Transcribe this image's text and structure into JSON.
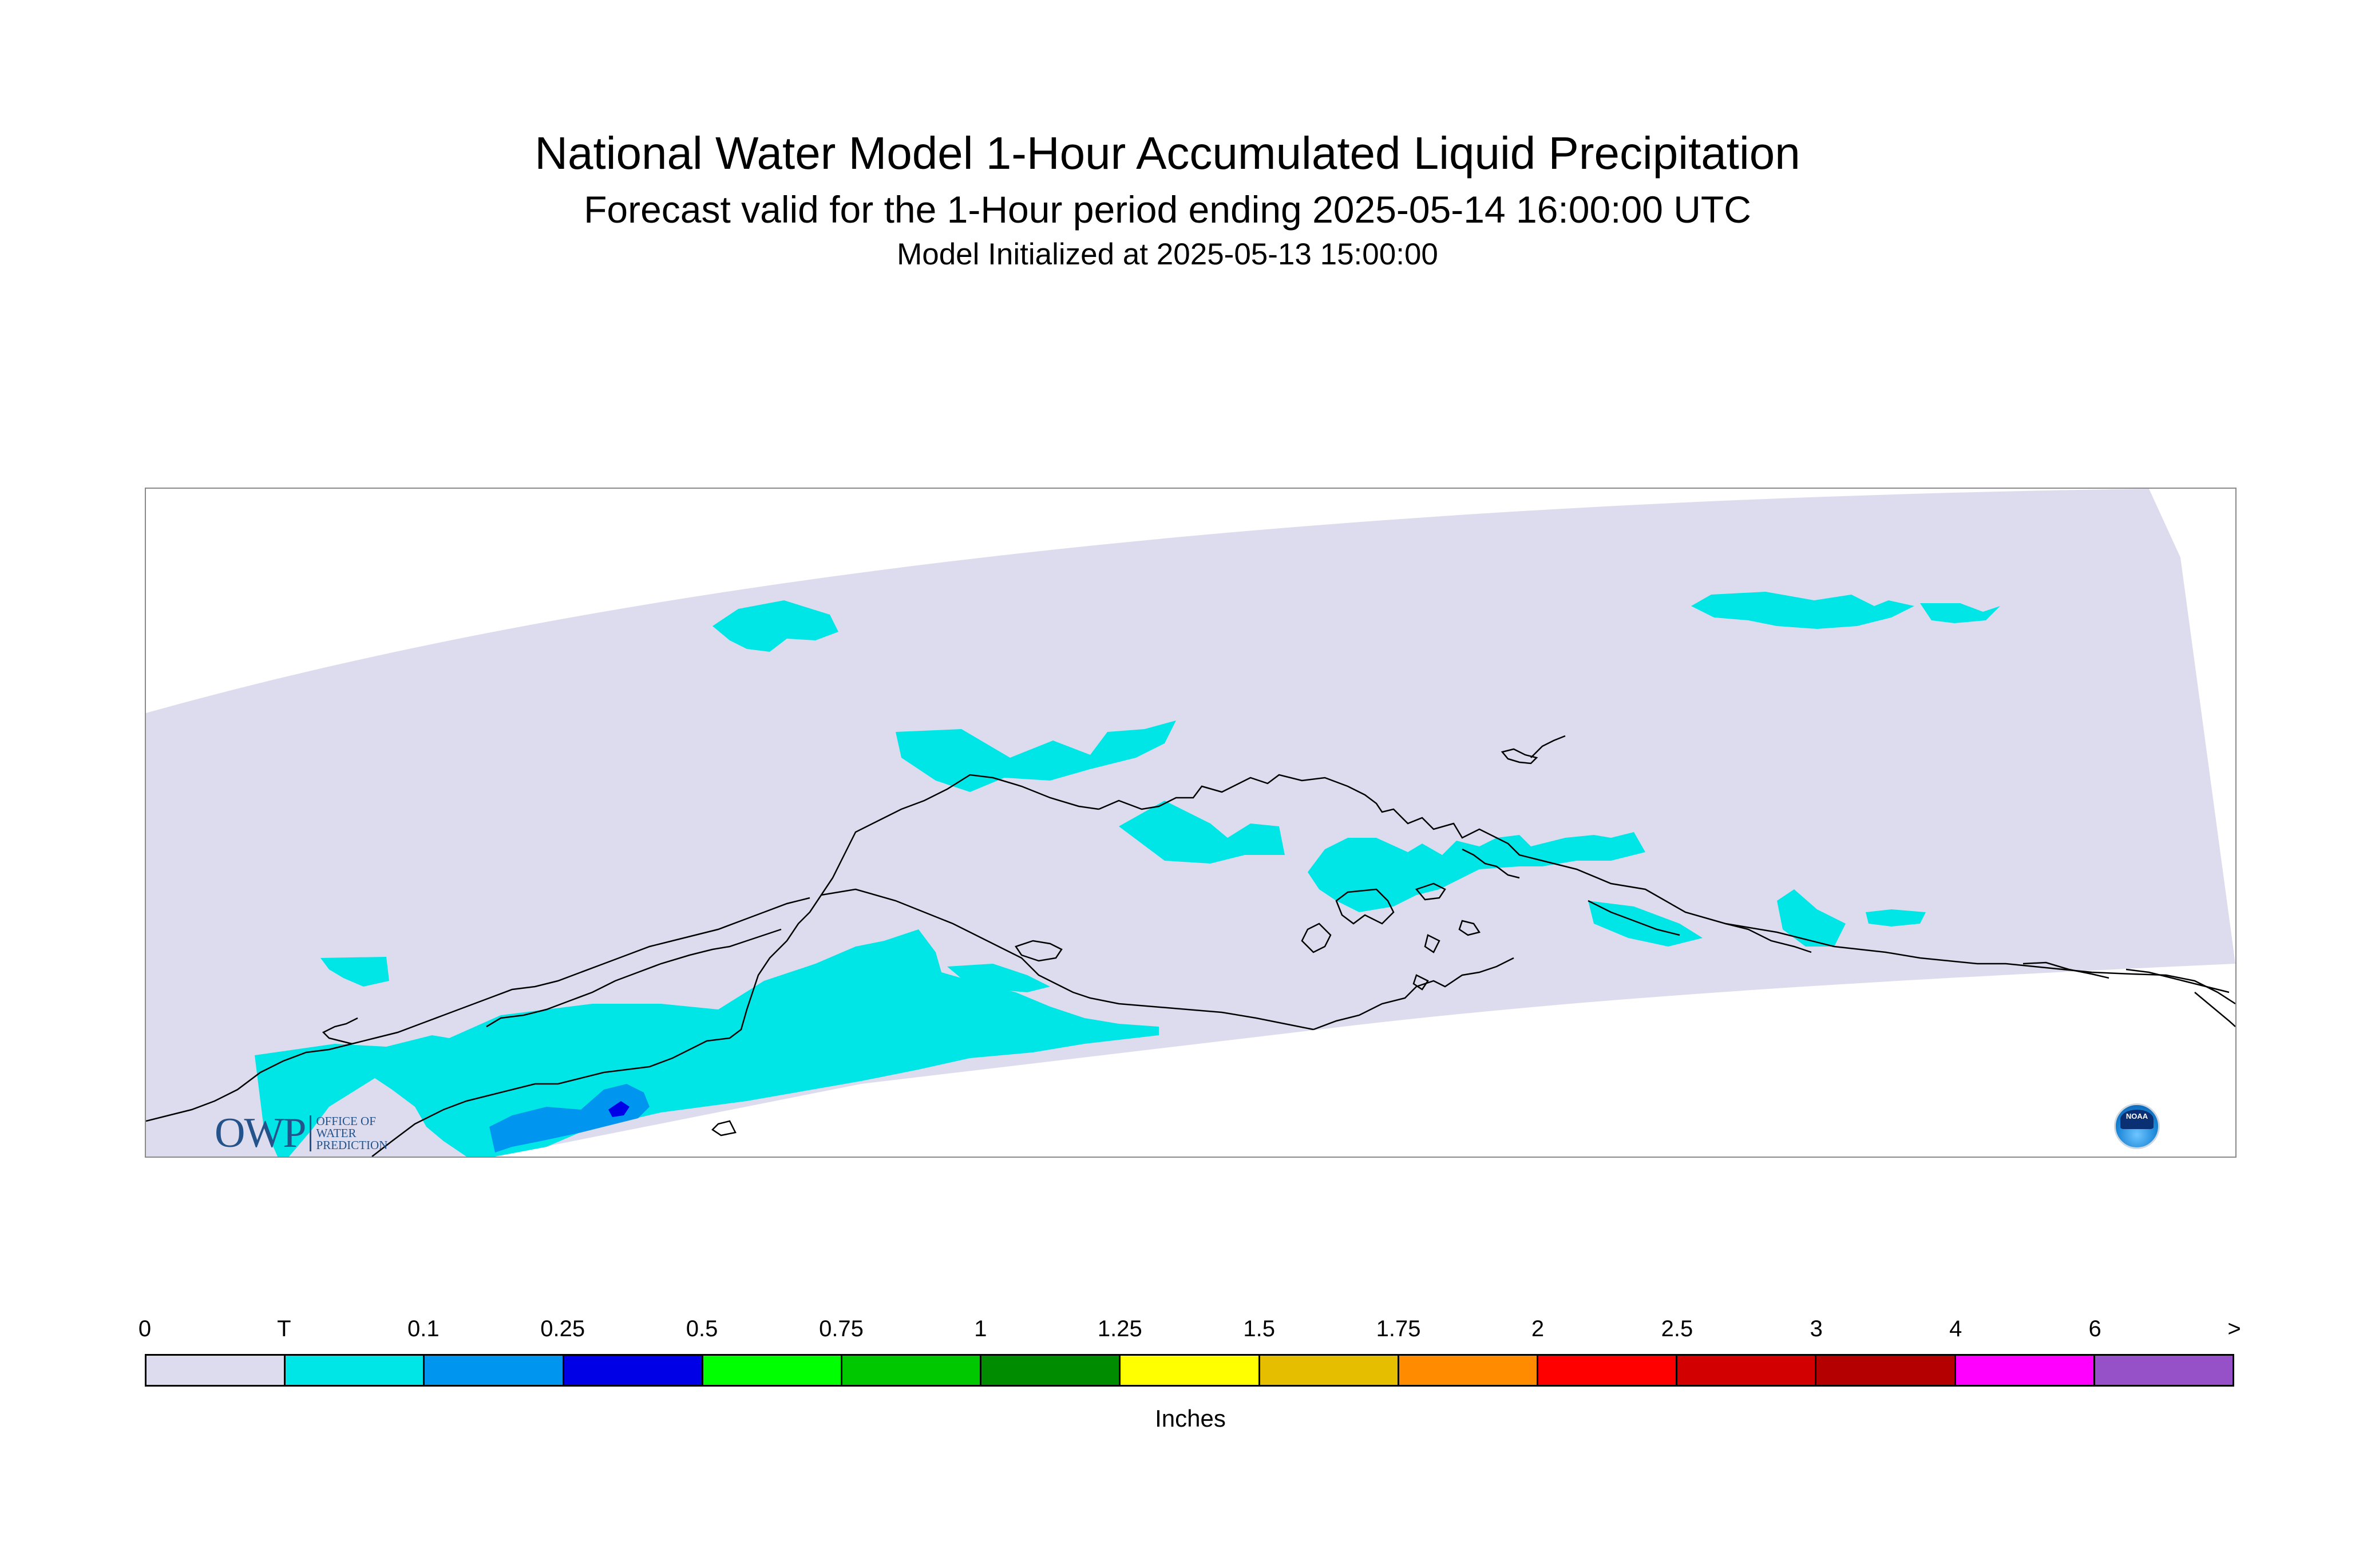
{
  "title": {
    "main": "National Water Model 1-Hour Accumulated Liquid Precipitation",
    "sub": "Forecast valid for the 1-Hour period ending 2025-05-14 16:00:00 UTC",
    "init": "Model Initialized at 2025-05-13 15:00:00"
  },
  "map": {
    "region_colors": {
      "domain": "#dcdcee",
      "trace": "#00e6e6",
      "light": "#0096f0",
      "heavy": "#0000e6",
      "coast": "#000000"
    }
  },
  "logos": {
    "owp_big": "OWP",
    "owp_lines": [
      "OFFICE OF",
      "WATER",
      "PREDICTION"
    ],
    "noaa": "NOAA"
  },
  "legend": {
    "labels": [
      "0",
      "T",
      "0.1",
      "0.25",
      "0.5",
      "0.75",
      "1",
      "1.25",
      "1.5",
      "1.75",
      "2",
      "2.5",
      "3",
      "4",
      "6",
      ">"
    ],
    "colors": [
      "#dcdcee",
      "#00e6e6",
      "#0096f0",
      "#0000e6",
      "#00ff00",
      "#00c800",
      "#008c00",
      "#ffff00",
      "#e6be00",
      "#ff8c00",
      "#ff0000",
      "#d20000",
      "#b40000",
      "#ff00ff",
      "#9650c8"
    ],
    "units": "Inches"
  }
}
